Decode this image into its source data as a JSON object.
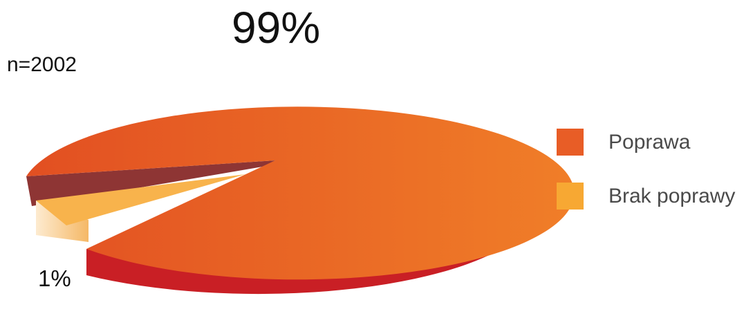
{
  "chart_data": {
    "type": "pie",
    "style": "3d-exploded",
    "n_label": "n=2002",
    "slices": [
      {
        "label": "Poprawa",
        "value": 99,
        "value_label": "99%",
        "color": "#E85D26"
      },
      {
        "label": "Brak poprawy",
        "value": 1,
        "value_label": "1%",
        "color": "#F7A833"
      }
    ],
    "legend_position": "right"
  },
  "colors": {
    "poprawa_top_dark": "#E24F22",
    "poprawa_top_light": "#F07E28",
    "poprawa_side": "#C91F25",
    "brak_top": "#F8B34C",
    "brak_side": "#FCE2BC"
  }
}
